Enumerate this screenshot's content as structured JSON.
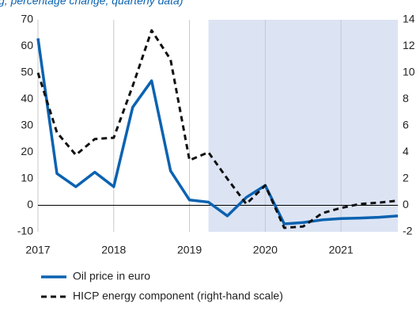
{
  "chart_data": {
    "type": "line",
    "subtitle": "g; percentage change; quarterly data)",
    "x": [
      2017,
      2017.25,
      2017.5,
      2017.75,
      2018,
      2018.25,
      2018.5,
      2018.75,
      2019,
      2019.25,
      2019.5,
      2019.75,
      2020,
      2020.25,
      2020.5,
      2020.75,
      2021,
      2021.25,
      2021.5,
      2021.75
    ],
    "series": [
      {
        "name": "Oil price in euro",
        "color": "#0b62b0",
        "values": [
          63,
          12,
          7,
          12.5,
          7,
          37,
          47,
          13,
          2,
          1.2,
          -4,
          3,
          7.5,
          -7,
          -6.5,
          -5.5,
          -5,
          -4.8,
          -4.5,
          -4
        ]
      },
      {
        "name": "HICP energy component (right-hand scale)",
        "color": "#111111",
        "axis": "y2",
        "dashed": true,
        "values": [
          10,
          5.5,
          3.8,
          5,
          5.1,
          9,
          13.2,
          11,
          3.4,
          4,
          2,
          0.1,
          1.5,
          -1.7,
          -1.6,
          -0.6,
          -0.2,
          0.1,
          0.2,
          0.35
        ]
      }
    ],
    "xlim": [
      2017,
      2021.75
    ],
    "xticks": [
      2017,
      2018,
      2019,
      2020,
      2021
    ],
    "ylim": [
      -10,
      70
    ],
    "yticks": [
      -10,
      0,
      10,
      20,
      30,
      40,
      50,
      60,
      70
    ],
    "y2lim": [
      -2,
      14
    ],
    "y2ticks": [
      -2,
      0,
      2,
      4,
      6,
      8,
      10,
      12,
      14
    ],
    "shade_start": 2019.25,
    "shade_color": "#dce4f4",
    "grid": "x"
  }
}
